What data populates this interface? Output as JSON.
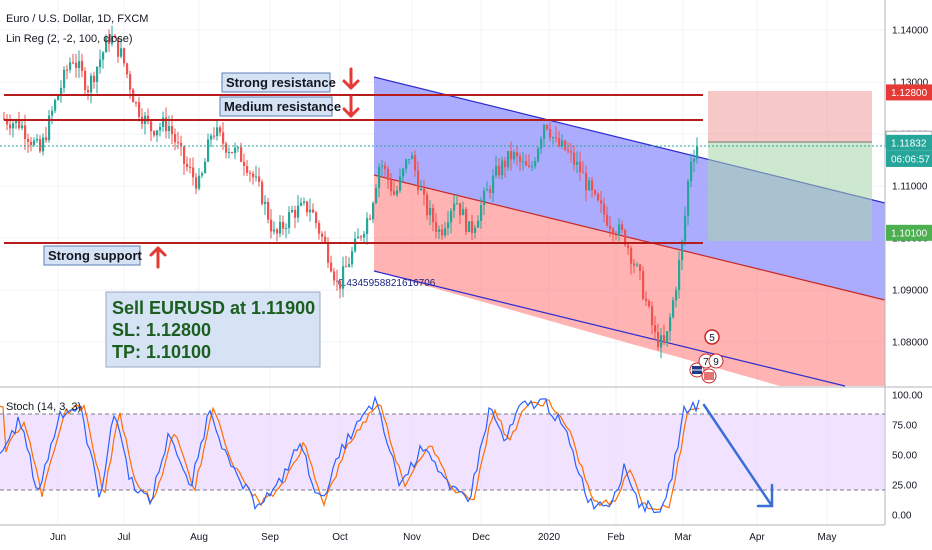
{
  "header": {
    "symbol_line": "Euro / U.S. Dollar, 1D, FXCM",
    "indicator_line": "Lin Reg (2, -2, 100, close)"
  },
  "chart_data": [
    {
      "type": "candlestick",
      "title": "Euro / U.S. Dollar, 1D, FXCM",
      "price_axis": {
        "ticks": [
          "1.14000",
          "1.13000",
          "1.12000",
          "1.11000",
          "1.10000",
          "1.09000",
          "1.08000"
        ],
        "ylim": [
          1.0755,
          1.1451
        ]
      },
      "time_axis": {
        "ticks": [
          "Jun",
          "Jul",
          "Aug",
          "Sep",
          "Oct",
          "Nov",
          "Dec",
          "2020",
          "Feb",
          "Mar",
          "Apr",
          "May"
        ]
      },
      "horizontal_levels": [
        {
          "label": "Strong resistance",
          "price": 1.128
        },
        {
          "label": "Medium resistance",
          "price": 1.1225
        },
        {
          "label": "Strong support",
          "price": 1.1005
        }
      ],
      "price_tags": [
        {
          "text": "1.12800",
          "price": 1.128,
          "color": "#e53935"
        },
        {
          "text": "1.11900",
          "price": 1.119,
          "color": "#ffffff"
        },
        {
          "text": "1.11832",
          "price": 1.1183,
          "color": "#26a69a"
        },
        {
          "text": "06:06:57",
          "price": 1.1152,
          "color": "#26a69a"
        },
        {
          "text": "1.10100",
          "price": 1.101,
          "color": "#4caf50"
        }
      ],
      "trade_box": {
        "entry": 1.119,
        "stop_loss": 1.128,
        "take_profit": 1.101
      },
      "channel_label": "0.4345958821616706",
      "event_badges": [
        "5",
        "7",
        "9"
      ]
    },
    {
      "type": "line",
      "title": "Stoch (14, 3, 3)",
      "y_ticks": [
        "100.00",
        "75.00",
        "50.00",
        "25.00",
        "0.00"
      ],
      "ylim": [
        0,
        100
      ],
      "bands": [
        20,
        80
      ]
    }
  ],
  "annotations": {
    "strong_resistance": "Strong resistance",
    "medium_resistance": "Medium resistance",
    "strong_support": "Strong support",
    "trade_line1": "Sell EURUSD at 1.11900",
    "trade_line2": "SL: 1.12800",
    "trade_line3": "TP: 1.10100"
  },
  "colors": {
    "up_candle": "#26a69a",
    "down_candle": "#ef5350",
    "level_line": "#b71c1c",
    "channel_upper": "#8c8cff",
    "channel_lower": "#ff8a8a",
    "stoch_k": "#2962ff",
    "stoch_d": "#ff6d00"
  }
}
